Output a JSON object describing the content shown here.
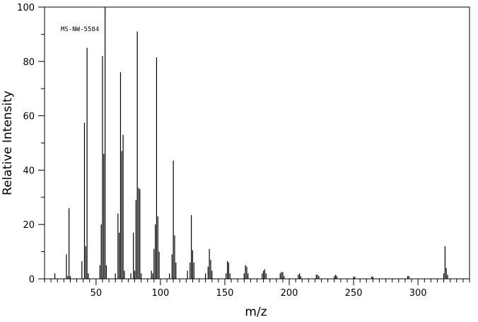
{
  "chart_data": {
    "type": "bar",
    "title": "",
    "annotation": "MS-NW-5584",
    "xlabel": "m/z",
    "ylabel": "Relative Intensity",
    "xlim": [
      10,
      340
    ],
    "ylim": [
      0,
      100
    ],
    "x_major_ticks": [
      50,
      100,
      150,
      200,
      250,
      300
    ],
    "x_minor_step": 5,
    "y_major_ticks": [
      0,
      20,
      40,
      60,
      80,
      100
    ],
    "y_minor_step": 10,
    "grid": false,
    "peaks": [
      [
        18,
        2
      ],
      [
        27,
        9
      ],
      [
        28,
        1
      ],
      [
        29,
        26
      ],
      [
        30,
        1
      ],
      [
        39,
        6.5
      ],
      [
        41,
        57.5
      ],
      [
        42,
        12
      ],
      [
        43,
        85
      ],
      [
        44,
        2
      ],
      [
        53,
        5
      ],
      [
        54,
        20
      ],
      [
        55,
        82
      ],
      [
        56,
        46
      ],
      [
        57,
        100
      ],
      [
        58,
        5
      ],
      [
        65,
        2
      ],
      [
        67,
        24
      ],
      [
        68,
        17
      ],
      [
        69,
        76
      ],
      [
        70,
        47
      ],
      [
        71,
        53
      ],
      [
        72,
        3
      ],
      [
        77,
        2
      ],
      [
        79,
        17
      ],
      [
        80,
        3
      ],
      [
        81,
        29
      ],
      [
        82,
        91
      ],
      [
        83,
        33.5
      ],
      [
        84,
        33
      ],
      [
        85,
        2
      ],
      [
        93,
        3
      ],
      [
        94,
        2
      ],
      [
        95,
        11
      ],
      [
        96,
        20
      ],
      [
        97,
        81.5
      ],
      [
        98,
        23
      ],
      [
        99,
        10
      ],
      [
        107,
        2
      ],
      [
        109,
        9
      ],
      [
        110,
        43.5
      ],
      [
        111,
        16
      ],
      [
        112,
        6
      ],
      [
        121,
        3
      ],
      [
        123,
        6
      ],
      [
        124,
        23.5
      ],
      [
        125,
        10.5
      ],
      [
        126,
        6
      ],
      [
        135,
        2
      ],
      [
        137,
        4.5
      ],
      [
        138,
        11
      ],
      [
        139,
        7
      ],
      [
        140,
        3
      ],
      [
        151,
        2
      ],
      [
        152,
        6.5
      ],
      [
        153,
        6
      ],
      [
        154,
        2
      ],
      [
        165,
        2
      ],
      [
        166,
        5
      ],
      [
        167,
        4.5
      ],
      [
        168,
        2
      ],
      [
        179,
        2
      ],
      [
        180,
        3
      ],
      [
        181,
        3.5
      ],
      [
        182,
        2
      ],
      [
        193,
        2
      ],
      [
        194,
        2.5
      ],
      [
        195,
        2.5
      ],
      [
        196,
        1
      ],
      [
        207,
        1.5
      ],
      [
        208,
        2
      ],
      [
        209,
        1
      ],
      [
        221,
        1.5
      ],
      [
        222,
        1.5
      ],
      [
        223,
        1
      ],
      [
        235,
        1
      ],
      [
        236,
        1.5
      ],
      [
        237,
        1
      ],
      [
        250,
        0.8
      ],
      [
        251,
        0.8
      ],
      [
        264,
        0.8
      ],
      [
        265,
        0.8
      ],
      [
        292,
        1
      ],
      [
        293,
        1
      ],
      [
        320,
        2
      ],
      [
        321,
        12
      ],
      [
        322,
        4
      ],
      [
        323,
        1.5
      ]
    ]
  }
}
